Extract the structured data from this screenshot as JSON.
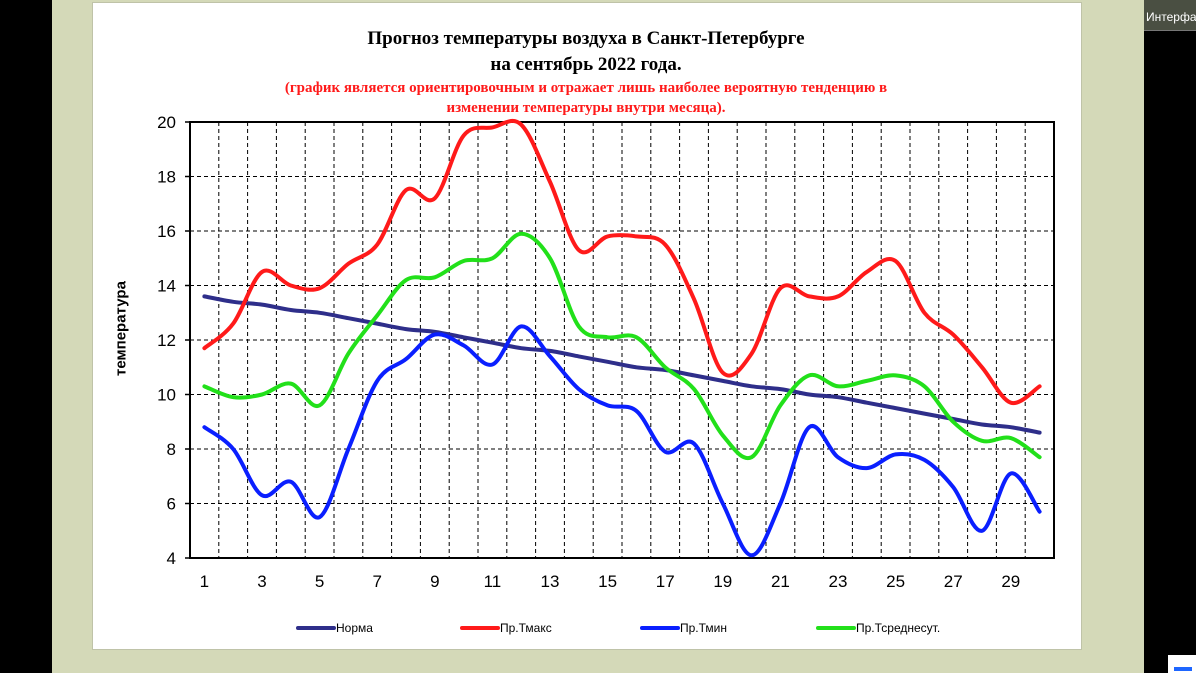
{
  "title_line1": "Прогноз температуры воздуха в Санкт-Петербурге",
  "title_line2": "на сентябрь 2022 года.",
  "subtitle_line1": "(график является ориентировочным и отражает лишь наиболее вероятную тенденцию в",
  "subtitle_line2": "изменении температуры внутри месяца).",
  "thumbnail_label": "Интерфа",
  "chart_data": {
    "type": "line",
    "ylabel": "температура",
    "xlabel": "",
    "ylim": [
      4,
      20
    ],
    "xlim": [
      0.5,
      30.5
    ],
    "yticks": [
      4,
      6,
      8,
      10,
      12,
      14,
      16,
      18,
      20
    ],
    "xticks": [
      1,
      3,
      5,
      7,
      9,
      11,
      13,
      15,
      17,
      19,
      21,
      23,
      25,
      27,
      29
    ],
    "grid": true,
    "legend_position": "bottom",
    "x": [
      1,
      2,
      3,
      4,
      5,
      6,
      7,
      8,
      9,
      10,
      11,
      12,
      13,
      14,
      15,
      16,
      17,
      18,
      19,
      20,
      21,
      22,
      23,
      24,
      25,
      26,
      27,
      28,
      29,
      30
    ],
    "series": [
      {
        "name": "Норма",
        "color": "#2e2e8a",
        "values": [
          13.6,
          13.4,
          13.3,
          13.1,
          13.0,
          12.8,
          12.6,
          12.4,
          12.3,
          12.1,
          11.9,
          11.7,
          11.6,
          11.4,
          11.2,
          11.0,
          10.9,
          10.7,
          10.5,
          10.3,
          10.2,
          10.0,
          9.9,
          9.7,
          9.5,
          9.3,
          9.1,
          8.9,
          8.8,
          8.6
        ]
      },
      {
        "name": "Пр.Тмакс",
        "color": "#ff1a1a",
        "values": [
          11.7,
          12.6,
          14.5,
          14.0,
          13.9,
          14.8,
          15.5,
          17.5,
          17.2,
          19.5,
          19.8,
          19.9,
          17.8,
          15.3,
          15.8,
          15.8,
          15.5,
          13.5,
          10.8,
          11.5,
          13.9,
          13.6,
          13.6,
          14.5,
          14.9,
          13.0,
          12.2,
          11.0,
          9.7,
          10.3
        ]
      },
      {
        "name": "Пр.Тмин",
        "color": "#0a1fff",
        "values": [
          8.8,
          8.0,
          6.3,
          6.8,
          5.5,
          8.0,
          10.5,
          11.3,
          12.2,
          11.8,
          11.1,
          12.5,
          11.4,
          10.2,
          9.6,
          9.4,
          7.9,
          8.2,
          6.0,
          4.1,
          6.0,
          8.8,
          7.7,
          7.3,
          7.8,
          7.6,
          6.6,
          5.0,
          7.1,
          5.7
        ]
      },
      {
        "name": "Пр.Тсреднесут.",
        "color": "#22e01a",
        "values": [
          10.3,
          9.9,
          10.0,
          10.4,
          9.6,
          11.5,
          12.9,
          14.2,
          14.3,
          14.9,
          15.0,
          15.9,
          15.0,
          12.5,
          12.1,
          12.1,
          11.0,
          10.2,
          8.5,
          7.7,
          9.6,
          10.7,
          10.3,
          10.5,
          10.7,
          10.3,
          9.0,
          8.3,
          8.4,
          7.7
        ]
      }
    ]
  }
}
